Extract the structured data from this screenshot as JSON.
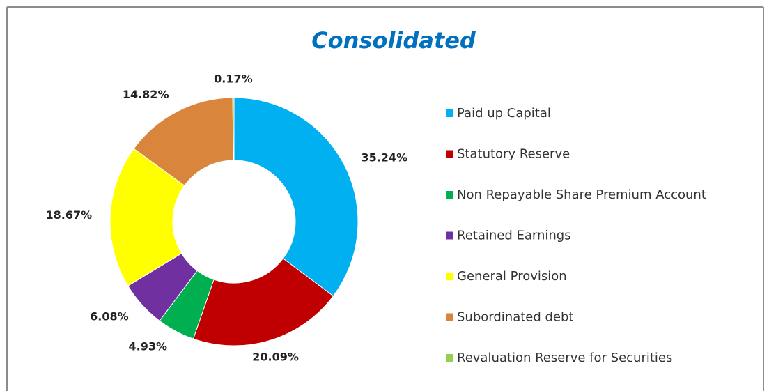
{
  "chart_data": {
    "type": "donut",
    "title": "Consolidated",
    "categories": [
      "Paid up Capital",
      "Statutory Reserve",
      "Non Repayable Share Premium Account",
      "Retained Earnings",
      "General Provision",
      "Subordinated debt",
      "Revaluation Reserve for Securities"
    ],
    "values": [
      35.24,
      20.09,
      4.93,
      6.08,
      18.67,
      14.82,
      0.17
    ],
    "value_labels": [
      "35.24%",
      "20.09%",
      "4.93%",
      "6.08%",
      "18.67%",
      "14.82%",
      "0.17%"
    ],
    "colors": [
      "#00b0f0",
      "#c00000",
      "#00b050",
      "#7030a0",
      "#ffff00",
      "#d9853b",
      "#92d050"
    ],
    "legend": "right"
  }
}
